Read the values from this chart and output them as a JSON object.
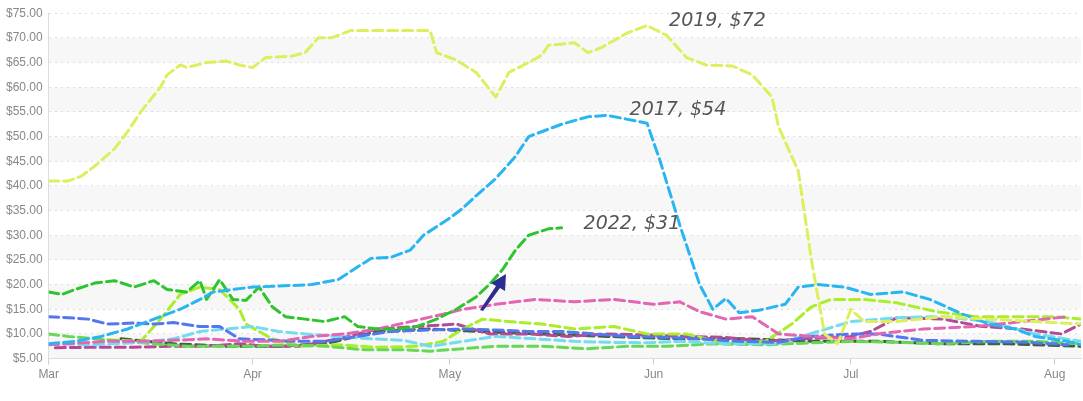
{
  "chart_data": {
    "type": "line",
    "xlim": [
      "--03-01",
      "--08-05"
    ],
    "xticks": [
      {
        "value": "--03-01",
        "label": "Mar"
      },
      {
        "value": "--04-01",
        "label": "Apr"
      },
      {
        "value": "--05-01",
        "label": "May"
      },
      {
        "value": "--06-01",
        "label": "Jun"
      },
      {
        "value": "--07-01",
        "label": "Jul"
      },
      {
        "value": "--08-01",
        "label": "Aug"
      }
    ],
    "ylim": [
      5,
      75
    ],
    "yticks": [
      {
        "value": 5,
        "label": "$5.00"
      },
      {
        "value": 10,
        "label": "$10.00"
      },
      {
        "value": 15,
        "label": "$15.00"
      },
      {
        "value": 20,
        "label": "$20.00"
      },
      {
        "value": 25,
        "label": "$25.00"
      },
      {
        "value": 30,
        "label": "$30.00"
      },
      {
        "value": 35,
        "label": "$35.00"
      },
      {
        "value": 40,
        "label": "$40.00"
      },
      {
        "value": 45,
        "label": "$45.00"
      },
      {
        "value": 50,
        "label": "$50.00"
      },
      {
        "value": 55,
        "label": "$55.00"
      },
      {
        "value": 60,
        "label": "$60.00"
      },
      {
        "value": 65,
        "label": "$65.00"
      },
      {
        "value": 70,
        "label": "$70.00"
      },
      {
        "value": 75,
        "label": "$75.00"
      }
    ],
    "grid": "y",
    "legend": false,
    "line_style": "dashed",
    "marker": "none",
    "annotations": [
      {
        "text": "2019, $72",
        "x": "--05-31",
        "y": 72.5
      },
      {
        "text": "2017, $54",
        "x": "--05-25",
        "y": 54.5
      },
      {
        "text": "2022, $31",
        "x": "--05-18",
        "y": 31.5
      }
    ],
    "series": [
      {
        "color": "#dfee5e",
        "x": [
          "--03-01",
          "--03-04",
          "--03-06",
          "--03-08",
          "--03-11",
          "--03-13",
          "--03-15",
          "--03-18",
          "--03-19",
          "--03-21",
          "--03-22",
          "--03-25",
          "--03-28",
          "--03-30",
          "--04-01",
          "--04-03",
          "--04-07",
          "--04-09",
          "--04-11",
          "--04-13",
          "--04-16",
          "--04-28",
          "--04-29",
          "--05-02",
          "--05-05",
          "--05-08",
          "--05-10",
          "--05-13",
          "--05-15",
          "--05-16",
          "--05-20",
          "--05-22",
          "--05-24",
          "--05-28",
          "--05-31",
          "--06-03",
          "--06-06",
          "--06-09",
          "--06-13",
          "--06-16",
          "--06-19",
          "--06-20",
          "--06-23",
          "--06-25",
          "--06-27",
          "--06-29",
          "--07-01",
          "--07-03",
          "--07-08",
          "--07-15",
          "--07-22",
          "--07-29",
          "--08-05"
        ],
        "values": [
          41,
          41,
          42,
          44,
          47.5,
          51,
          55,
          60,
          62.5,
          64.5,
          64,
          65,
          65.3,
          64.5,
          64,
          66,
          66.3,
          67,
          70,
          70,
          71.5,
          71.5,
          67,
          65.5,
          63,
          58,
          63,
          65,
          66.5,
          68.5,
          69,
          67,
          68,
          71,
          72.5,
          70.5,
          66,
          64.5,
          64.3,
          62.5,
          58,
          52,
          43,
          25,
          10,
          8,
          15,
          12.5,
          12.5,
          13.5,
          13,
          12.5,
          12
        ]
      },
      {
        "color": "#29b6f0",
        "x": [
          "--03-01",
          "--03-05",
          "--03-09",
          "--03-13",
          "--03-16",
          "--03-19",
          "--03-21",
          "--03-24",
          "--03-26",
          "--03-29",
          "--04-01",
          "--04-05",
          "--04-10",
          "--04-14",
          "--04-19",
          "--04-22",
          "--04-25",
          "--04-27",
          "--05-01",
          "--05-03",
          "--05-05",
          "--05-08",
          "--05-11",
          "--05-13",
          "--05-18",
          "--05-22",
          "--05-25",
          "--05-31",
          "--06-02",
          "--06-05",
          "--06-08",
          "--06-10",
          "--06-12",
          "--06-14",
          "--06-17",
          "--06-21",
          "--06-23",
          "--06-26",
          "--06-30",
          "--07-04",
          "--07-09",
          "--07-13",
          "--07-18",
          "--07-22",
          "--07-26",
          "--07-29",
          "--08-03",
          "--08-05"
        ],
        "values": [
          8,
          8.5,
          9.5,
          11,
          12.5,
          14,
          15,
          17,
          18.5,
          19,
          19.5,
          19.7,
          20,
          21,
          25.3,
          25.5,
          27,
          30,
          33.5,
          35.5,
          38,
          41.5,
          46,
          50,
          52.5,
          54,
          54.3,
          52.7,
          45,
          32,
          20,
          15,
          17.2,
          14.3,
          14.8,
          16,
          19.5,
          20,
          19.5,
          18,
          18.5,
          17,
          14,
          12,
          11,
          9.5,
          8.5,
          7.8
        ]
      },
      {
        "color": "#2ec42e",
        "x": [
          "--03-01",
          "--03-03",
          "--03-05",
          "--03-08",
          "--03-11",
          "--03-14",
          "--03-17",
          "--03-19",
          "--03-22",
          "--03-24",
          "--03-25",
          "--03-27",
          "--03-29",
          "--03-31",
          "--04-02",
          "--04-04",
          "--04-06",
          "--04-09",
          "--04-12",
          "--04-15",
          "--04-17",
          "--04-20",
          "--04-23",
          "--04-26",
          "--04-29",
          "--05-02",
          "--05-05",
          "--05-07",
          "--05-09",
          "--05-11",
          "--05-13",
          "--05-16",
          "--05-18"
        ],
        "values": [
          18.5,
          18,
          19,
          20.3,
          20.8,
          19.5,
          20.8,
          19,
          18.5,
          20.8,
          17,
          21,
          17,
          16.8,
          19.5,
          15.5,
          13.5,
          13,
          12.5,
          13.5,
          11.5,
          11,
          11,
          11.5,
          13,
          15,
          17.5,
          20,
          23,
          27,
          30,
          31.3,
          31.5
        ]
      },
      {
        "color": "#e266b4",
        "x": [
          "--03-01",
          "--03-10",
          "--03-15",
          "--03-20",
          "--03-25",
          "--03-31",
          "--04-05",
          "--04-10",
          "--04-15",
          "--04-20",
          "--04-25",
          "--04-30",
          "--05-03",
          "--05-08",
          "--05-14",
          "--05-20",
          "--05-26",
          "--06-01",
          "--06-05",
          "--06-08",
          "--06-12",
          "--06-16",
          "--06-20",
          "--06-25",
          "--07-01",
          "--07-05",
          "--07-12",
          "--07-20",
          "--07-27",
          "--08-03"
        ],
        "values": [
          7.8,
          8.5,
          8.5,
          8.7,
          9,
          8.5,
          8.5,
          9.5,
          10,
          11,
          12.5,
          14,
          15,
          16,
          17,
          16.5,
          17,
          16,
          16.5,
          14.5,
          13,
          13.5,
          10,
          9.5,
          9,
          10,
          11,
          11.5,
          12.5,
          13.5
        ]
      },
      {
        "color": "#5577ee",
        "x": [
          "--03-01",
          "--03-04",
          "--03-07",
          "--03-10",
          "--03-14",
          "--03-17",
          "--03-20",
          "--03-24",
          "--03-27",
          "--03-30",
          "--04-03",
          "--04-07",
          "--04-12",
          "--04-17",
          "--04-22",
          "--04-28",
          "--05-03",
          "--05-08",
          "--05-13",
          "--05-18",
          "--05-23",
          "--05-28",
          "--06-03",
          "--06-08",
          "--06-14",
          "--06-20",
          "--06-25",
          "--07-01",
          "--07-05",
          "--07-12",
          "--07-20",
          "--07-28",
          "--08-03"
        ],
        "values": [
          13.5,
          13.3,
          13,
          12,
          12.2,
          12,
          12.3,
          11.5,
          11.5,
          9,
          8.8,
          8.5,
          8.5,
          9.5,
          10.5,
          10.8,
          11,
          10.8,
          10.5,
          10.5,
          10,
          9.5,
          9.3,
          9,
          8.5,
          8.3,
          9.5,
          10,
          10,
          8.7,
          8.5,
          8.3,
          7.8
        ]
      },
      {
        "color": "#72dcf0",
        "x": [
          "--03-01",
          "--03-08",
          "--03-15",
          "--03-20",
          "--03-24",
          "--03-28",
          "--04-01",
          "--04-05",
          "--04-09",
          "--04-14",
          "--04-19",
          "--04-24",
          "--04-28",
          "--05-03",
          "--05-08",
          "--05-14",
          "--05-20",
          "--05-25",
          "--05-31",
          "--06-05",
          "--06-12",
          "--06-20",
          "--06-26",
          "--07-01",
          "--07-08",
          "--07-15",
          "--07-22",
          "--07-29",
          "--08-05"
        ],
        "values": [
          8,
          7.8,
          8.3,
          9,
          10.5,
          11,
          11.5,
          10.5,
          10,
          9.5,
          9,
          8.7,
          7.5,
          8.5,
          9.5,
          9,
          8.5,
          8.3,
          8.2,
          8.5,
          8,
          8,
          10.5,
          12.5,
          13.3,
          13.5,
          12.5,
          10,
          8.5
        ]
      },
      {
        "color": "#66d855",
        "x": [
          "--03-01",
          "--03-04",
          "--03-08",
          "--03-12",
          "--03-17",
          "--03-22",
          "--03-27",
          "--04-01",
          "--04-06",
          "--04-12",
          "--04-18",
          "--04-24",
          "--04-28",
          "--05-03",
          "--05-08",
          "--05-15",
          "--05-22",
          "--05-28",
          "--06-03",
          "--06-10",
          "--06-18",
          "--06-25",
          "--07-01",
          "--07-08",
          "--07-15",
          "--07-22",
          "--07-29",
          "--08-05"
        ],
        "values": [
          10,
          9.5,
          9,
          8.5,
          8,
          7.5,
          7.5,
          7.5,
          7.8,
          7.5,
          6.8,
          6.8,
          6.5,
          7,
          7.5,
          7.5,
          7,
          7.5,
          7.5,
          8,
          7.8,
          8.2,
          8.5,
          8.3,
          8,
          8.5,
          8.5,
          8
        ]
      },
      {
        "color": "#aaee2a",
        "x": [
          "--03-10",
          "--03-15",
          "--03-18",
          "--03-21",
          "--03-24",
          "--03-27",
          "--03-30",
          "--03-31",
          "--04-04",
          "--04-08",
          "--04-14",
          "--04-20",
          "--04-26",
          "--04-30",
          "--05-03",
          "--05-06",
          "--05-10",
          "--05-15",
          "--05-20",
          "--05-26",
          "--05-31",
          "--06-06",
          "--06-12",
          "--06-18",
          "--06-22",
          "--06-25",
          "--06-28",
          "--07-03",
          "--07-08",
          "--07-14",
          "--07-20",
          "--07-26",
          "--08-01",
          "--08-05"
        ],
        "values": [
          8.8,
          8.5,
          13,
          18,
          19.5,
          19,
          15,
          12,
          9,
          7.5,
          7.8,
          7.3,
          7.5,
          8.5,
          11,
          13,
          12.5,
          12,
          11,
          11.5,
          10,
          10,
          8,
          8.5,
          12,
          15.5,
          17,
          17,
          16.3,
          14.5,
          13.5,
          13.5,
          13.5,
          13
        ]
      },
      {
        "color": "#b44a94",
        "x": [
          "--03-02",
          "--03-08",
          "--03-14",
          "--03-20",
          "--03-25",
          "--03-30",
          "--04-03",
          "--04-08",
          "--04-14",
          "--04-20",
          "--04-26",
          "--05-02",
          "--05-07",
          "--05-13",
          "--05-19",
          "--05-25",
          "--05-31",
          "--06-06",
          "--06-12",
          "--06-18",
          "--06-24",
          "--07-01",
          "--07-04",
          "--07-08",
          "--07-15",
          "--07-21",
          "--07-27",
          "--08-02",
          "--08-05"
        ],
        "values": [
          7.2,
          7.3,
          7.3,
          7.5,
          7.5,
          8,
          7.5,
          7.5,
          9,
          11,
          11.5,
          12,
          10,
          10,
          9.5,
          10,
          9.8,
          9.5,
          9.3,
          8.5,
          9,
          9.5,
          10.5,
          13.3,
          13,
          11.5,
          11,
          10,
          12
        ]
      },
      {
        "color": "#3e5e46",
        "x": [
          "--03-12",
          "--03-20",
          "--03-28",
          "--04-05",
          "--04-12",
          "--04-20",
          "--04-28",
          "--05-05",
          "--05-15",
          "--05-25",
          "--06-05",
          "--06-15",
          "--06-25",
          "--07-05",
          "--07-15",
          "--07-25",
          "--08-05"
        ],
        "values": [
          9,
          8,
          7.5,
          7.5,
          8,
          10.5,
          11,
          10.5,
          10,
          9.5,
          9,
          9,
          8.5,
          8.5,
          8,
          8,
          7.5
        ]
      }
    ]
  }
}
